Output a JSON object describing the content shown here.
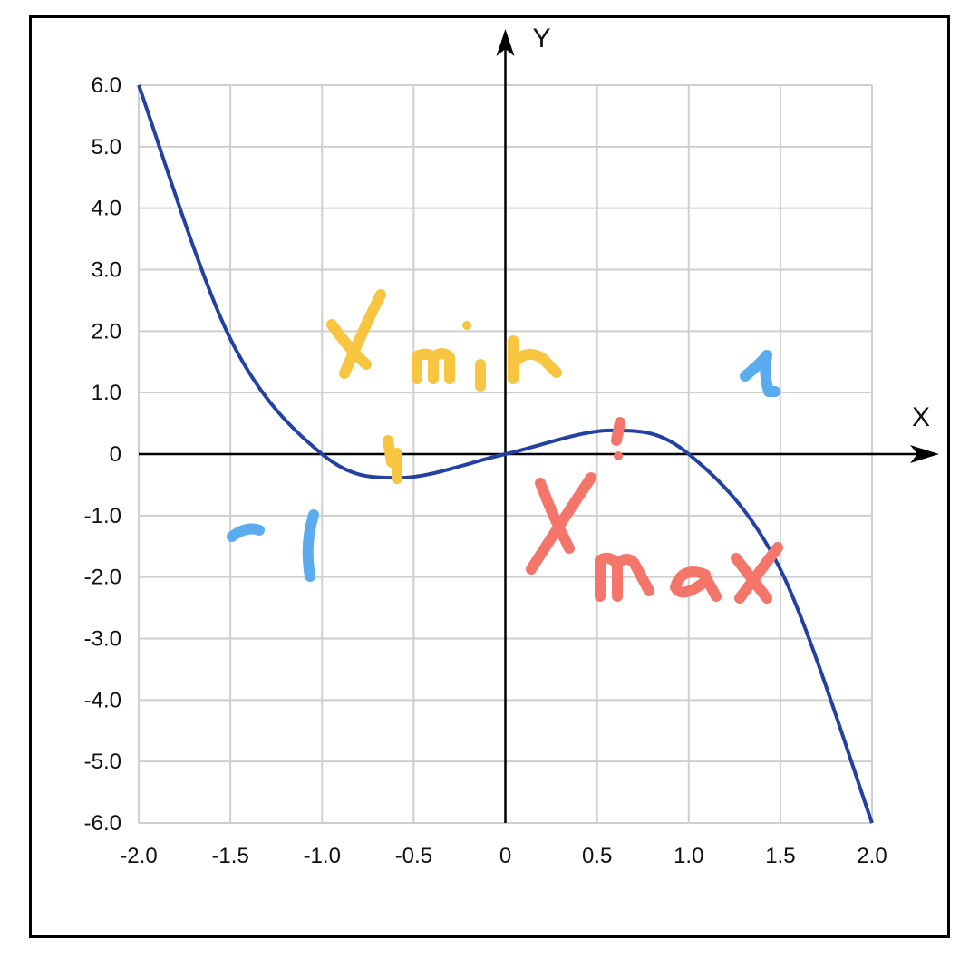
{
  "chart_data": {
    "type": "line",
    "title": "",
    "xlabel": "X",
    "ylabel": "Y",
    "xlim": [
      -2.0,
      2.0
    ],
    "ylim": [
      -6.0,
      6.0
    ],
    "x_ticks": [
      "-2.0",
      "-1.5",
      "-1.0",
      "-0.5",
      "0",
      "0.5",
      "1.0",
      "1.5",
      "2.0"
    ],
    "y_ticks": [
      "6.0",
      "5.0",
      "4.0",
      "3.0",
      "2.0",
      "1.0",
      "0",
      "-1.0",
      "-2.0",
      "-3.0",
      "-4.0",
      "-5.0",
      "-6.0"
    ],
    "grid": true,
    "series": [
      {
        "x": [
          -2.0,
          -1.5,
          -1.0,
          -0.577,
          0.0,
          0.577,
          1.0,
          1.5,
          2.0
        ],
        "y": [
          6.0,
          1.875,
          0.0,
          -0.385,
          0.0,
          0.385,
          0.0,
          -1.875,
          -6.0
        ],
        "color": "#2341a0"
      }
    ],
    "annotations": [
      {
        "text": "X min",
        "color": "#f7c53f"
      },
      {
        "text": "X max",
        "color": "#f4766a"
      },
      {
        "text": "-1",
        "color": "#5aacee"
      },
      {
        "text": "1",
        "color": "#5aacee"
      }
    ]
  }
}
